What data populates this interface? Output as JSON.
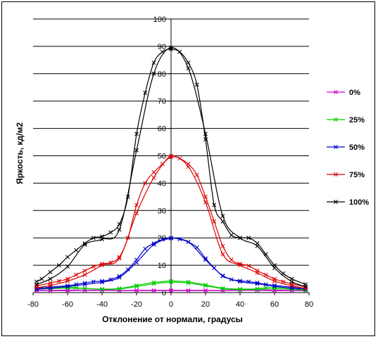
{
  "chart_data": {
    "type": "line",
    "xlabel": "Отклонение от нормали, градусы",
    "ylabel": "Яркость, кд/м2",
    "xlim": [
      -80,
      80
    ],
    "ylim": [
      0,
      100
    ],
    "x_ticks": [
      -80,
      -60,
      -40,
      -20,
      0,
      20,
      40,
      60,
      80
    ],
    "y_ticks": [
      0,
      10,
      20,
      30,
      40,
      50,
      60,
      70,
      80,
      90,
      100
    ],
    "grid": "horizontal",
    "legend_position": "right",
    "series": [
      {
        "name": "0%",
        "color": "#CC00CC",
        "x": [
          -78,
          -70,
          -60,
          -50,
          -40,
          -30,
          -20,
          -10,
          0,
          10,
          20,
          30,
          40,
          50,
          60,
          70,
          78
        ],
        "y": [
          0.8,
          0.8,
          0.9,
          0.9,
          0.9,
          0.8,
          0.8,
          0.8,
          0.8,
          0.8,
          0.8,
          0.8,
          0.9,
          0.9,
          0.9,
          0.8,
          0.8
        ],
        "x2": [
          -78,
          -70,
          -60,
          -50,
          -40,
          -30,
          -20,
          -10,
          0,
          10,
          20,
          30,
          40,
          50,
          60,
          70,
          78
        ],
        "y2": [
          0.7,
          0.7,
          0.7,
          0.8,
          0.8,
          0.7,
          0.7,
          0.7,
          0.7,
          0.7,
          0.7,
          0.7,
          0.8,
          0.8,
          0.7,
          0.7,
          0.7
        ]
      },
      {
        "name": "25%",
        "color": "#00CC00",
        "x": [
          -78,
          -70,
          -60,
          -55,
          -50,
          -40,
          -30,
          -20,
          -10,
          0,
          10,
          20,
          30,
          40,
          50,
          55,
          60,
          70,
          78
        ],
        "y": [
          1.8,
          1.8,
          2,
          1.8,
          1.5,
          1.3,
          1.5,
          2.6,
          3.7,
          4.2,
          3.9,
          2.8,
          1.6,
          1.3,
          1.4,
          1.8,
          1.9,
          1.5,
          1
        ],
        "x2": [
          -78,
          -70,
          -60,
          -50,
          -40,
          -30,
          -20,
          -10,
          0,
          10,
          20,
          30,
          40,
          50,
          60,
          70,
          78
        ],
        "y2": [
          1.2,
          1.4,
          1.6,
          1.5,
          1.2,
          1.3,
          2.2,
          3.2,
          3.8,
          3.5,
          2.5,
          1.4,
          1.1,
          1.2,
          1.4,
          1.2,
          0.8
        ]
      },
      {
        "name": "50%",
        "color": "#0000CC",
        "x": [
          -78,
          -70,
          -60,
          -55,
          -50,
          -45,
          -40,
          -35,
          -30,
          -25,
          -20,
          -15,
          -10,
          -5,
          0,
          5,
          10,
          15,
          20,
          25,
          30,
          35,
          40,
          45,
          50,
          55,
          60,
          70,
          78
        ],
        "y": [
          1.5,
          2,
          2.5,
          3,
          3.5,
          4,
          4.2,
          4.8,
          6,
          8.5,
          12,
          16,
          18,
          19.4,
          20,
          19.5,
          18.5,
          16.5,
          12.5,
          9,
          6,
          4.8,
          4.3,
          4,
          3.6,
          3,
          2.6,
          2,
          1.5
        ],
        "x2": [
          -78,
          -70,
          -60,
          -50,
          -40,
          -30,
          -20,
          -10,
          0,
          10,
          20,
          30,
          40,
          50,
          60,
          70,
          78
        ],
        "y2": [
          1.2,
          1.6,
          2.2,
          3,
          3.8,
          5.5,
          11,
          17.5,
          19.8,
          18.5,
          12,
          6.2,
          4,
          3.2,
          2.3,
          1.6,
          1.2
        ]
      },
      {
        "name": "75%",
        "color": "#DD0000",
        "x": [
          -78,
          -70,
          -65,
          -60,
          -55,
          -50,
          -45,
          -40,
          -35,
          -30,
          -25,
          -20,
          -15,
          -10,
          -5,
          0,
          5,
          10,
          15,
          20,
          25,
          30,
          35,
          40,
          45,
          50,
          55,
          60,
          65,
          70,
          78
        ],
        "y": [
          2.5,
          3.5,
          4.2,
          5,
          6.5,
          8,
          9.5,
          10.5,
          11,
          13,
          20,
          32,
          40,
          44,
          47,
          50,
          49,
          47,
          43,
          35,
          26,
          17,
          12,
          10.5,
          9.8,
          8,
          6.5,
          5,
          4,
          3.2,
          2
        ],
        "x2": [
          -78,
          -70,
          -60,
          -50,
          -40,
          -30,
          -20,
          -10,
          0,
          10,
          20,
          30,
          40,
          50,
          60,
          70,
          78
        ],
        "y2": [
          1.8,
          2.6,
          4.2,
          6.5,
          10,
          12.5,
          29,
          42,
          49.5,
          46,
          33,
          14,
          10,
          7.2,
          4.2,
          2.5,
          1.5
        ]
      },
      {
        "name": "100%",
        "color": "#000000",
        "x": [
          -78,
          -75,
          -70,
          -65,
          -60,
          -55,
          -50,
          -45,
          -40,
          -35,
          -30,
          -25,
          -20,
          -15,
          -10,
          -5,
          0,
          5,
          10,
          15,
          20,
          25,
          30,
          35,
          40,
          45,
          50,
          55,
          60,
          65,
          70,
          78
        ],
        "y": [
          4,
          5,
          7.5,
          10,
          13,
          15.5,
          18,
          20,
          20.5,
          22,
          25,
          35,
          58,
          73,
          84,
          88,
          89,
          88,
          84,
          76,
          56,
          32,
          26,
          21,
          20,
          20,
          18,
          14,
          10,
          7,
          5,
          3
        ],
        "x2": [
          -78,
          -70,
          -60,
          -50,
          -40,
          -30,
          -20,
          -10,
          0,
          10,
          20,
          30,
          40,
          50,
          60,
          70,
          78
        ],
        "y2": [
          3,
          5,
          9.5,
          17.5,
          19.5,
          23,
          52,
          80,
          89.5,
          82,
          58,
          28,
          20,
          17,
          9,
          4,
          2.2
        ]
      }
    ]
  }
}
